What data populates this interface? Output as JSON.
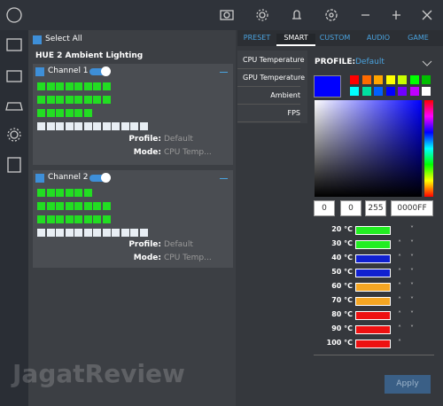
{
  "sidebar": {
    "select_all": "Select All",
    "device": "HUE 2 Ambient Lighting"
  },
  "channels": [
    {
      "name": "Channel 1",
      "profile_label": "Profile:",
      "profile": "Default",
      "mode_label": "Mode:",
      "mode": "CPU Temp..."
    },
    {
      "name": "Channel 2",
      "profile_label": "Profile:",
      "profile": "Default",
      "mode_label": "Mode:",
      "mode": "CPU Temp..."
    }
  ],
  "tabs": [
    "PRESET",
    "SMART",
    "CUSTOM",
    "AUDIO",
    "GAME"
  ],
  "smart_modes": [
    "CPU Temperature",
    "GPU Temperature",
    "Ambient",
    "FPS"
  ],
  "profile": {
    "label": "PROFILE:",
    "value": "Default"
  },
  "swatches": [
    "#ff0000",
    "#ff6a00",
    "#ffa500",
    "#ffff00",
    "#c8ff00",
    "#00ff00",
    "#00c000",
    "#00ffff",
    "#00e0a0",
    "#0060ff",
    "#0000ff",
    "#7000ff",
    "#c000ff",
    "#ffffff"
  ],
  "color_inputs": [
    "0",
    "0",
    "255",
    "0000FF"
  ],
  "temperatures": [
    {
      "label": "20 °C",
      "color": "#22ee22"
    },
    {
      "label": "30 °C",
      "color": "#22ee22"
    },
    {
      "label": "40 °C",
      "color": "#1020d0"
    },
    {
      "label": "50 °C",
      "color": "#1020d0"
    },
    {
      "label": "60 °C",
      "color": "#f5a623"
    },
    {
      "label": "70 °C",
      "color": "#f5a623"
    },
    {
      "label": "80 °C",
      "color": "#ee1111"
    },
    {
      "label": "90 °C",
      "color": "#ee1111"
    },
    {
      "label": "100 °C",
      "color": "#ee1111"
    }
  ],
  "apply": "Apply",
  "watermark": "JagatReview"
}
